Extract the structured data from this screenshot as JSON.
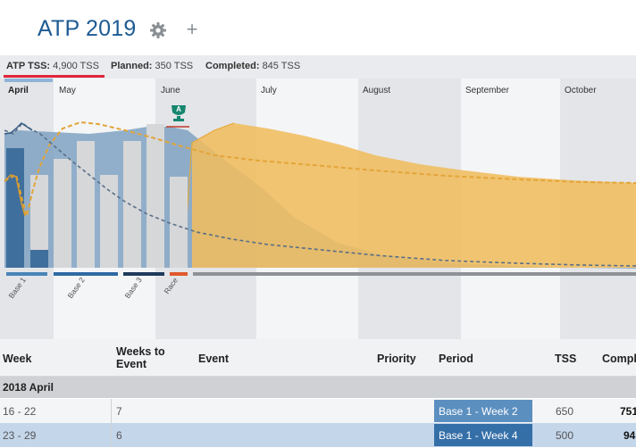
{
  "header": {
    "title": "ATP 2019"
  },
  "summary": {
    "atp_tss_label": "ATP TSS:",
    "atp_tss_value": "4,900 TSS",
    "planned_label": "Planned:",
    "planned_value": "350 TSS",
    "completed_label": "Completed:",
    "completed_value": "845 TSS"
  },
  "chart": {
    "months": [
      "April",
      "May",
      "June",
      "July",
      "August",
      "September",
      "October"
    ],
    "active_month": "April",
    "race_icon_label": "A",
    "periods": [
      "Base 1",
      "Base 2",
      "Base 3",
      "Race"
    ],
    "colors": {
      "fitness_area": "#88a9c6",
      "planned_area": "#f0bd5e",
      "bars": "#d6d7d9",
      "base": "#3e7cb1",
      "base3": "#1f3a5c",
      "race": "#e05a2b",
      "timeline": "#8e9296"
    }
  },
  "table": {
    "headers": {
      "week": "Week",
      "weeks_to_event": "Weeks to Event",
      "event": "Event",
      "priority": "Priority",
      "period": "Period",
      "tss": "TSS",
      "completed": "Compl"
    },
    "group": "2018 April",
    "rows": [
      {
        "week": "16 - 22",
        "weeks_to_event": "7",
        "period": "Base 1 - Week 2",
        "tss": "650",
        "completed": "751"
      },
      {
        "week": "23 - 29",
        "weeks_to_event": "6",
        "period": "Base 1 - Week 4",
        "tss": "500",
        "completed": "94"
      }
    ]
  }
}
